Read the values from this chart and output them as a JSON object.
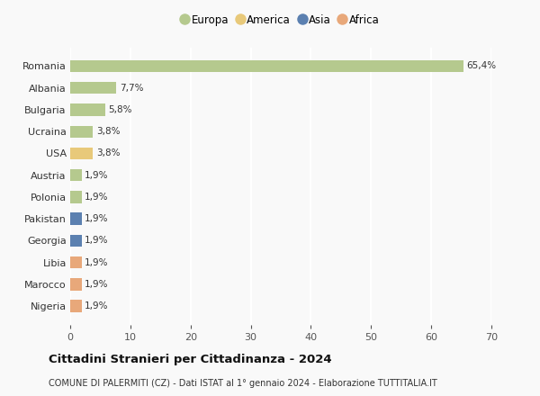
{
  "countries": [
    "Romania",
    "Albania",
    "Bulgaria",
    "Ucraina",
    "USA",
    "Austria",
    "Polonia",
    "Pakistan",
    "Georgia",
    "Libia",
    "Marocco",
    "Nigeria"
  ],
  "values": [
    65.4,
    7.7,
    5.8,
    3.8,
    3.8,
    1.9,
    1.9,
    1.9,
    1.9,
    1.9,
    1.9,
    1.9
  ],
  "labels": [
    "65,4%",
    "7,7%",
    "5,8%",
    "3,8%",
    "3,8%",
    "1,9%",
    "1,9%",
    "1,9%",
    "1,9%",
    "1,9%",
    "1,9%",
    "1,9%"
  ],
  "colors": [
    "#b5c98e",
    "#b5c98e",
    "#b5c98e",
    "#b5c98e",
    "#e8c97a",
    "#b5c98e",
    "#b5c98e",
    "#5b80b0",
    "#5b80b0",
    "#e8a87a",
    "#e8a87a",
    "#e8a87a"
  ],
  "legend": [
    {
      "label": "Europa",
      "color": "#b5c98e"
    },
    {
      "label": "America",
      "color": "#e8c97a"
    },
    {
      "label": "Asia",
      "color": "#5b80b0"
    },
    {
      "label": "Africa",
      "color": "#e8a87a"
    }
  ],
  "xlim": [
    0,
    70
  ],
  "xticks": [
    0,
    10,
    20,
    30,
    40,
    50,
    60,
    70
  ],
  "title": "Cittadini Stranieri per Cittadinanza - 2024",
  "subtitle": "COMUNE DI PALERMITI (CZ) - Dati ISTAT al 1° gennaio 2024 - Elaborazione TUTTITALIA.IT",
  "bg_color": "#f9f9f9",
  "grid_color": "#ffffff",
  "bar_height": 0.55,
  "bar_alpha": 1.0,
  "label_fontsize": 7.5,
  "ytick_fontsize": 8,
  "xtick_fontsize": 8
}
